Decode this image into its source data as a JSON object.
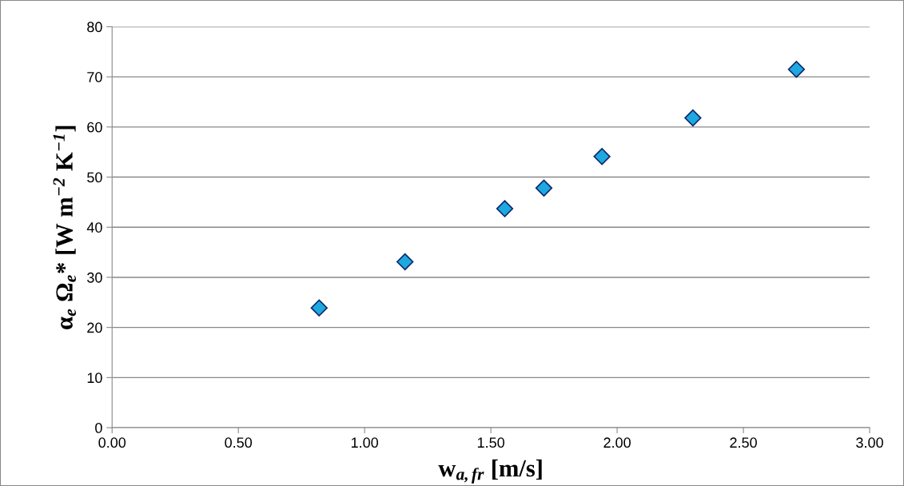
{
  "chart_data": {
    "type": "scatter",
    "xlabel": "w$_{a,fr}$ [m/s]",
    "ylabel": "α$_{e}$ Ω$_{e}$* [W m$^{−2}$ K$^{−1}$]",
    "x": [
      0.82,
      1.16,
      1.555,
      1.71,
      1.94,
      2.3,
      2.71
    ],
    "series": [
      {
        "color": "#1ea8e0",
        "values": [
          23.9,
          33.1,
          43.7,
          47.8,
          54.1,
          61.8,
          71.5
        ]
      }
    ],
    "xlim": [
      0,
      3
    ],
    "xticks": [
      {
        "value": 0,
        "label": "0.00"
      },
      {
        "value": 0.5,
        "label": "0.50"
      },
      {
        "value": 1,
        "label": "1.00"
      },
      {
        "value": 1.5,
        "label": "1.50"
      },
      {
        "value": 2,
        "label": "2.00"
      },
      {
        "value": 2.5,
        "label": "2.50"
      },
      {
        "value": 3,
        "label": "3.00"
      }
    ],
    "ylim": [
      0,
      80
    ],
    "yticks": [
      0,
      10,
      20,
      30,
      40,
      50,
      60,
      70,
      80
    ],
    "grid": "y",
    "legend": false,
    "marker": "diamond"
  }
}
